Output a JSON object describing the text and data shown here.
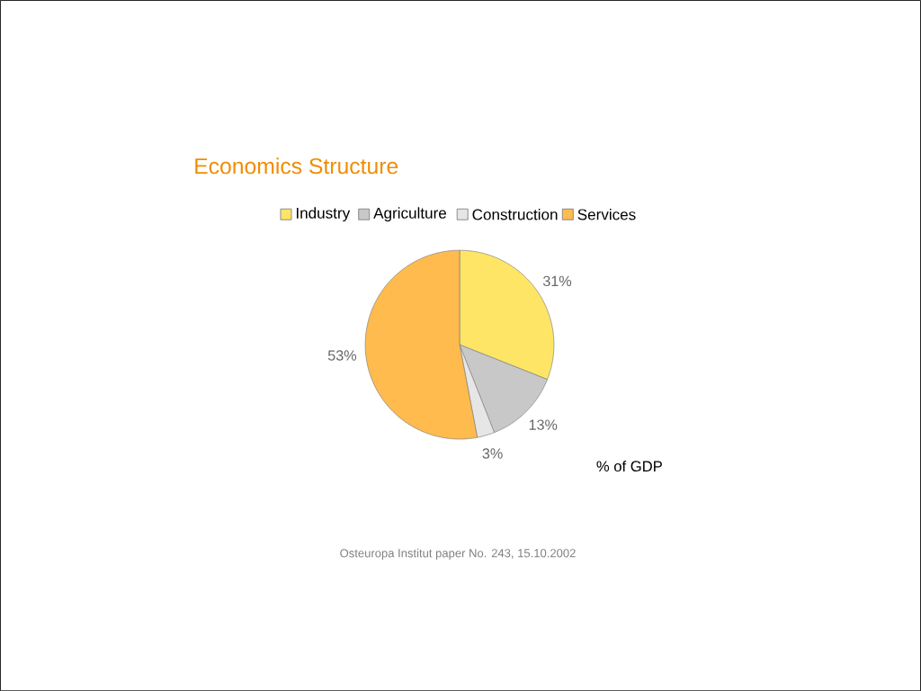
{
  "chart_data": {
    "type": "pie",
    "title": "Economics Structure",
    "categories": [
      "Industry",
      "Agriculture",
      "Construction",
      "Services"
    ],
    "values": [
      31,
      13,
      3,
      53
    ],
    "colors": [
      "#ffe566",
      "#c8c8c8",
      "#e6e6e6",
      "#ffbb4d"
    ],
    "value_labels": [
      "31%",
      "13%",
      "3%",
      "53%"
    ],
    "legend": "top",
    "annotations": [
      "% of GDP",
      "Osteuropa Institut paper No. 243, 15.10.2002"
    ]
  }
}
